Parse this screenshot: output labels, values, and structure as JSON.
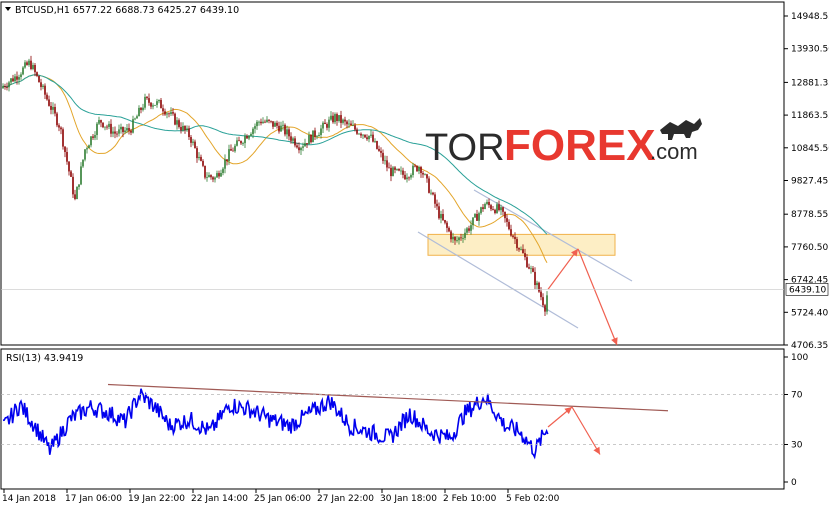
{
  "header": {
    "title": "BTCUSD,H1  6577.22 6688.73 6425.27 6439.10",
    "rsi_title": "RSI(13) 43.9419"
  },
  "watermark": {
    "text_left": "TOR",
    "text_right": "FOREX",
    "suffix": ".com"
  },
  "colors": {
    "candle_up": "#2e7d32",
    "candle_down": "#8b0000",
    "ma_fast": "#e3a52a",
    "ma_slow": "#2aa198",
    "rsi_line": "#0000ee",
    "channel": "#b0bcd8",
    "zone_fill": "#fdeec5",
    "zone_border": "#f0b24a",
    "arrow": "#f06050",
    "rsi_trend": "#a05a55",
    "grid": "#cccccc"
  },
  "chart_data": [
    {
      "type": "candlestick",
      "title": "BTCUSD,H1",
      "ohlc_last": {
        "open": 6577.22,
        "high": 6688.73,
        "low": 6425.27,
        "close": 6439.1
      },
      "y_ticks": [
        "14948.55",
        "13930.50",
        "12881.35",
        "11863.55",
        "10845.50",
        "9827.45",
        "8778.55",
        "7760.50",
        "6742.45",
        "5724.40",
        "4706.35"
      ],
      "current_price_label": "6439.10",
      "x_ticks": [
        "14 Jan 2018",
        "17 Jan 06:00",
        "19 Jan 22:00",
        "22 Jan 14:00",
        "25 Jan 06:00",
        "27 Jan 22:00",
        "30 Jan 18:00",
        "2 Feb 10:00",
        "5 Feb 02:00"
      ],
      "ylim": [
        4706.35,
        14948.55
      ],
      "approx_close_path": [
        [
          0,
          12700
        ],
        [
          15,
          13050
        ],
        [
          30,
          13500
        ],
        [
          45,
          12500
        ],
        [
          60,
          11500
        ],
        [
          75,
          9200
        ],
        [
          85,
          10800
        ],
        [
          100,
          11700
        ],
        [
          115,
          11300
        ],
        [
          130,
          11400
        ],
        [
          145,
          12300
        ],
        [
          160,
          12200
        ],
        [
          175,
          11700
        ],
        [
          190,
          11200
        ],
        [
          205,
          10000
        ],
        [
          215,
          9900
        ],
        [
          230,
          10700
        ],
        [
          245,
          11200
        ],
        [
          260,
          11700
        ],
        [
          280,
          11500
        ],
        [
          300,
          10900
        ],
        [
          320,
          11400
        ],
        [
          335,
          11800
        ],
        [
          350,
          11500
        ],
        [
          370,
          11200
        ],
        [
          390,
          10100
        ],
        [
          405,
          10000
        ],
        [
          420,
          10300
        ],
        [
          440,
          8700
        ],
        [
          455,
          7900
        ],
        [
          470,
          8400
        ],
        [
          485,
          9100
        ],
        [
          500,
          8900
        ],
        [
          515,
          8000
        ],
        [
          530,
          7100
        ],
        [
          545,
          5900
        ],
        [
          548,
          6439
        ]
      ],
      "moving_averages": [
        {
          "name": "MA fast",
          "color_key": "ma_fast"
        },
        {
          "name": "MA slow",
          "color_key": "ma_slow"
        }
      ],
      "annotations": {
        "resistance_zone": [
          7500,
          8150
        ],
        "descending_channel": true,
        "forecast_arrows": [
          [
            548,
            6439
          ],
          [
            578,
            7700
          ],
          [
            617,
            4706
          ]
        ]
      }
    },
    {
      "type": "line",
      "title": "RSI(13)",
      "last_value": 43.9419,
      "y_ticks": [
        "100",
        "70",
        "30",
        "0"
      ],
      "ylim": [
        0,
        100
      ],
      "levels": [
        70,
        30
      ],
      "approx_values": [
        [
          0,
          40
        ],
        [
          20,
          62
        ],
        [
          35,
          45
        ],
        [
          50,
          25
        ],
        [
          70,
          50
        ],
        [
          90,
          60
        ],
        [
          110,
          55
        ],
        [
          125,
          48
        ],
        [
          140,
          70
        ],
        [
          155,
          60
        ],
        [
          170,
          45
        ],
        [
          190,
          50
        ],
        [
          210,
          40
        ],
        [
          230,
          62
        ],
        [
          250,
          58
        ],
        [
          270,
          50
        ],
        [
          290,
          45
        ],
        [
          310,
          55
        ],
        [
          330,
          65
        ],
        [
          350,
          45
        ],
        [
          370,
          40
        ],
        [
          390,
          35
        ],
        [
          410,
          55
        ],
        [
          430,
          40
        ],
        [
          450,
          35
        ],
        [
          465,
          55
        ],
        [
          485,
          68
        ],
        [
          505,
          45
        ],
        [
          520,
          40
        ],
        [
          535,
          25
        ],
        [
          548,
          44
        ]
      ],
      "annotations": {
        "trendline": [
          [
            108,
            78
          ],
          [
            668,
            57
          ]
        ],
        "forecast_arrows": [
          [
            548,
            44
          ],
          [
            572,
            60
          ],
          [
            600,
            22
          ]
        ]
      }
    }
  ]
}
